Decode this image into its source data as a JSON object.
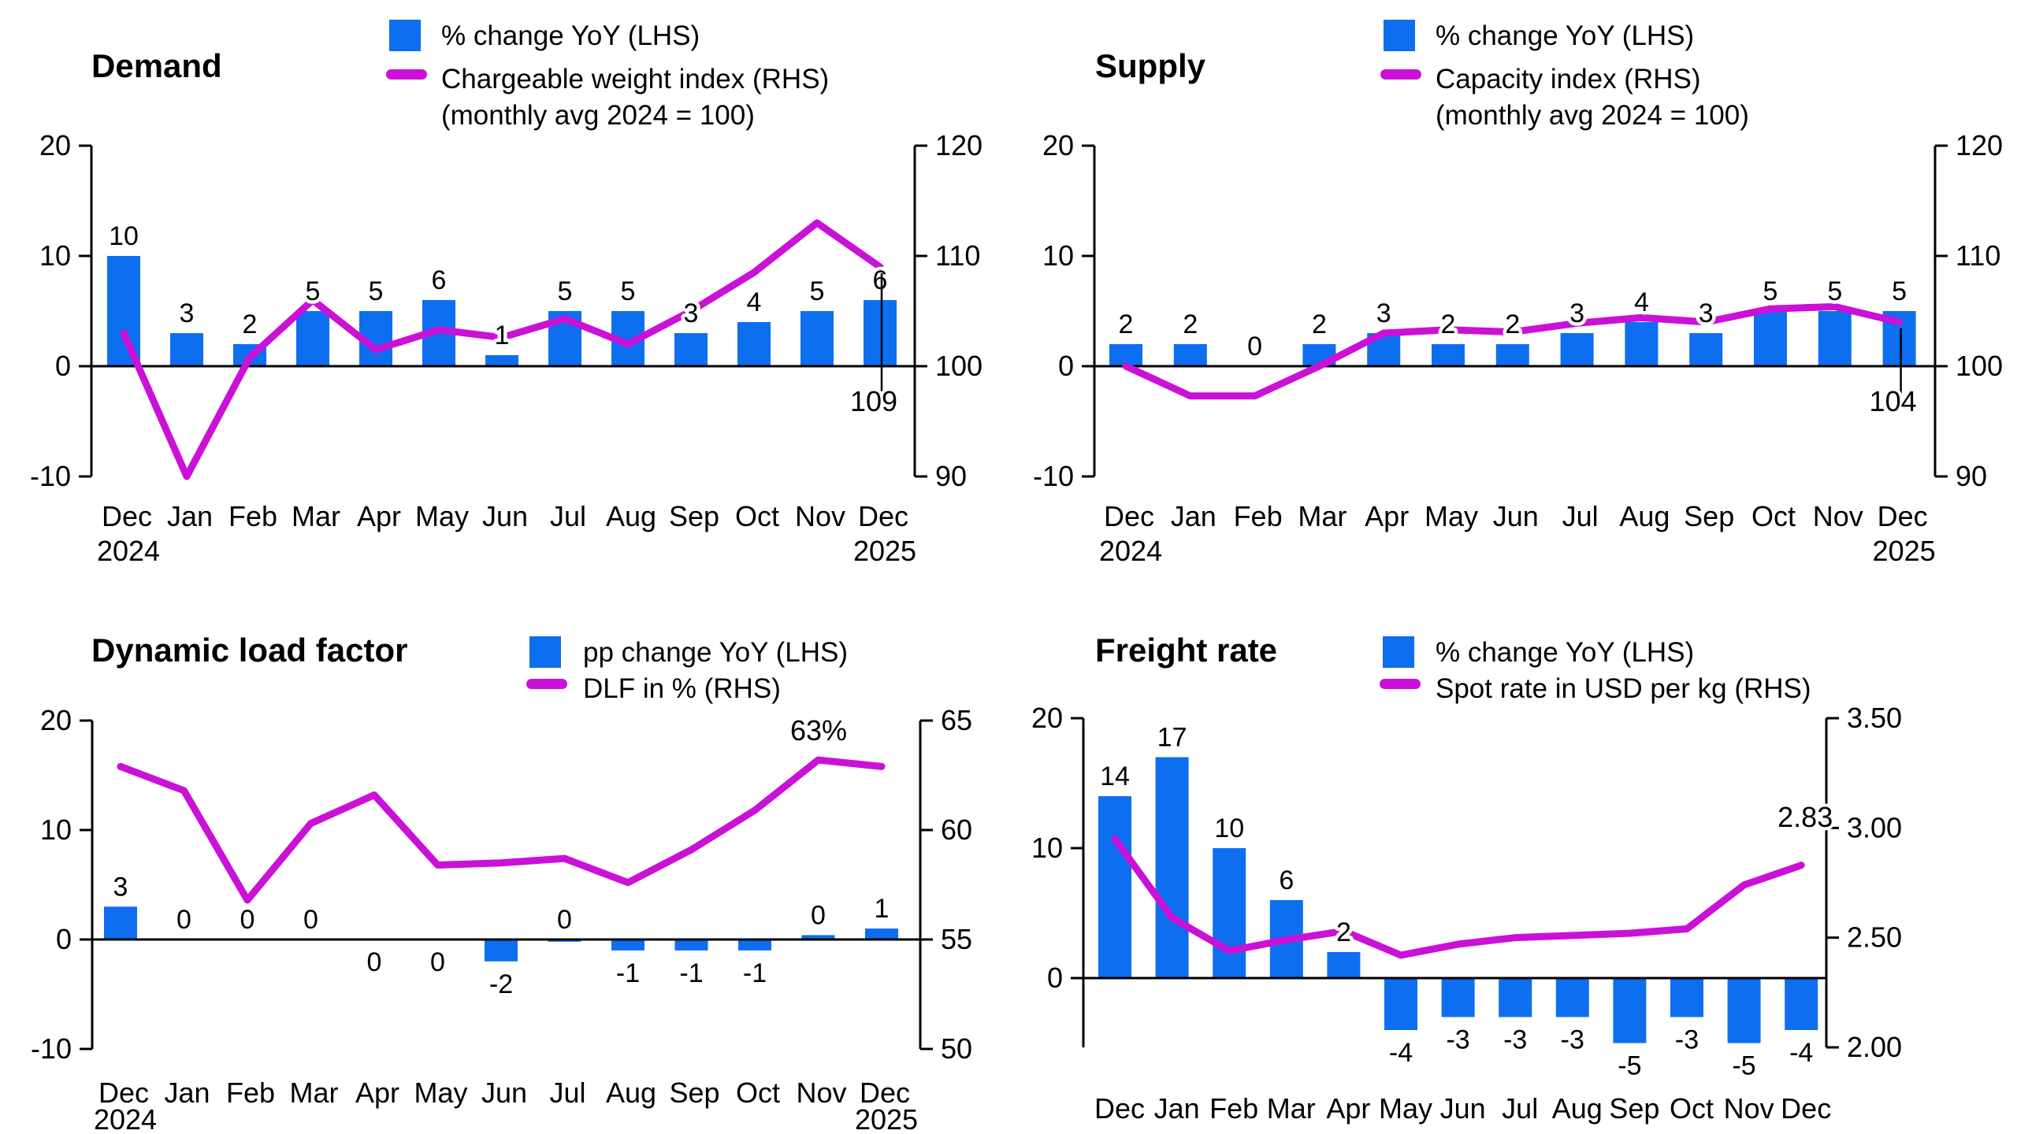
{
  "chart_data": {
    "type": "combo bar+line small multiples",
    "months": [
      "Dec",
      "Jan",
      "Feb",
      "Mar",
      "Apr",
      "May",
      "Jun",
      "Jul",
      "Aug",
      "Sep",
      "Oct",
      "Nov",
      "Dec"
    ],
    "colors": {
      "bar_blue": "#0d6ef0",
      "line_magenta": "#cb10d8",
      "axis_black": "#000000",
      "background": "#ffffff"
    },
    "charts": [
      {
        "id": "demand",
        "title": "Demand",
        "legend": {
          "bar_label": "% change YoY (LHS)",
          "line_label": "Chargeable weight index (RHS)",
          "line_label_2": "(monthly avg 2024 = 100)"
        },
        "lhs_axis": {
          "ticks": [
            "20",
            "10",
            "0",
            "-10"
          ],
          "range": [
            -10,
            20
          ]
        },
        "rhs_axis": {
          "ticks": [
            "120",
            "110",
            "100",
            "90"
          ],
          "range": [
            90,
            120
          ]
        },
        "x_year_start": "2024",
        "x_year_end": "2025",
        "bars": {
          "values": [
            10,
            3,
            2,
            5,
            5,
            6,
            1,
            5,
            5,
            3,
            4,
            5,
            6
          ],
          "labels": [
            "10",
            "3",
            "2",
            "5",
            "5",
            "6",
            "1",
            "5",
            "5",
            "3",
            "4",
            "5",
            "6"
          ],
          "label_side": [
            "above",
            "above",
            "above",
            "above",
            "above",
            "above",
            "above",
            "above",
            "above",
            "above",
            "above",
            "above",
            "above"
          ]
        },
        "line": {
          "values": [
            103,
            90,
            100.8,
            106,
            101.5,
            103.3,
            102.6,
            104.3,
            102,
            105,
            108.5,
            113,
            109
          ]
        },
        "callout": {
          "text": "109",
          "style": "drop-line-below-axis"
        }
      },
      {
        "id": "supply",
        "title": "Supply",
        "legend": {
          "bar_label": "% change YoY (LHS)",
          "line_label": "Capacity index (RHS)",
          "line_label_2": "(monthly avg 2024 = 100)"
        },
        "lhs_axis": {
          "ticks": [
            "20",
            "10",
            "0",
            "-10"
          ],
          "range": [
            -10,
            20
          ]
        },
        "rhs_axis": {
          "ticks": [
            "120",
            "110",
            "100",
            "90"
          ],
          "range": [
            90,
            120
          ]
        },
        "x_year_start": "2024",
        "x_year_end": "2025",
        "bars": {
          "values": [
            2,
            2,
            0,
            2,
            3,
            2,
            2,
            3,
            4,
            3,
            5,
            5,
            5
          ],
          "labels": [
            "2",
            "2",
            "0",
            "2",
            "3",
            "2",
            "2",
            "3",
            "4",
            "3",
            "5",
            "5",
            "5"
          ],
          "label_side": [
            "above",
            "above",
            "above",
            "above",
            "above",
            "above",
            "above",
            "above",
            "above",
            "above",
            "above",
            "above",
            "above"
          ]
        },
        "line": {
          "values": [
            100,
            97.3,
            97.3,
            100,
            103,
            103.3,
            103.1,
            103.9,
            104.4,
            104,
            105.2,
            105.4,
            104
          ]
        },
        "callout": {
          "text": "104",
          "style": "drop-line-below-axis"
        }
      },
      {
        "id": "dynamic-load-factor",
        "title": "Dynamic load factor",
        "legend": {
          "bar_label": "pp change YoY (LHS)",
          "line_label": "DLF in % (RHS)",
          "line_label_2": ""
        },
        "lhs_axis": {
          "ticks": [
            "20",
            "10",
            "0",
            "-10"
          ],
          "range": [
            -10,
            20
          ]
        },
        "rhs_axis": {
          "ticks": [
            "65",
            "60",
            "55",
            "50"
          ],
          "range": [
            50,
            65
          ]
        },
        "x_year_start": "2024",
        "x_year_end": "2025",
        "bars": {
          "values": [
            3,
            0,
            0,
            0,
            0,
            0,
            -2,
            -0.2,
            -1,
            -1,
            -1,
            0.4,
            1
          ],
          "labels": [
            "3",
            "0",
            "0",
            "0",
            "0",
            "0",
            "-2",
            "0",
            "-1",
            "-1",
            "-1",
            "0",
            "1"
          ],
          "label_side": [
            "above",
            "above",
            "above",
            "above",
            "below",
            "below",
            "below",
            "above",
            "below",
            "below",
            "below",
            "above",
            "above"
          ]
        },
        "line": {
          "values": [
            62.9,
            61.8,
            56.8,
            60.3,
            61.6,
            58.4,
            58.5,
            58.7,
            57.6,
            59.1,
            60.9,
            63.2,
            62.9
          ]
        },
        "callout": {
          "text": "63%",
          "style": "above-line-end"
        }
      },
      {
        "id": "freight-rate",
        "title": "Freight rate",
        "legend": {
          "bar_label": "% change YoY (LHS)",
          "line_label": "Spot rate in USD per kg (RHS)",
          "line_label_2": ""
        },
        "lhs_axis": {
          "ticks": [
            "20",
            "10",
            "0"
          ],
          "range": [
            -5.4,
            20
          ]
        },
        "rhs_axis": {
          "ticks": [
            "3.50",
            "3.00",
            "2.50",
            "2.00"
          ],
          "range": [
            2.0,
            3.5
          ]
        },
        "x_year_start": "",
        "x_year_end": "",
        "bars": {
          "values": [
            14,
            17,
            10,
            6,
            2,
            -4,
            -3,
            -3,
            -3,
            -5,
            -3,
            -5,
            -4
          ],
          "labels": [
            "14",
            "17",
            "10",
            "6",
            "2",
            "-4",
            "-3",
            "-3",
            "-3",
            "-5",
            "-3",
            "-5",
            "-4"
          ],
          "label_side": [
            "above",
            "above",
            "above",
            "above",
            "above",
            "below",
            "below",
            "below",
            "below",
            "below",
            "below",
            "below",
            "below"
          ]
        },
        "line": {
          "values": [
            2.95,
            2.59,
            2.44,
            2.49,
            2.53,
            2.42,
            2.47,
            2.5,
            2.51,
            2.52,
            2.54,
            2.74,
            2.83
          ]
        },
        "callout": {
          "text": "2.83",
          "style": "above-line-end"
        }
      }
    ]
  }
}
